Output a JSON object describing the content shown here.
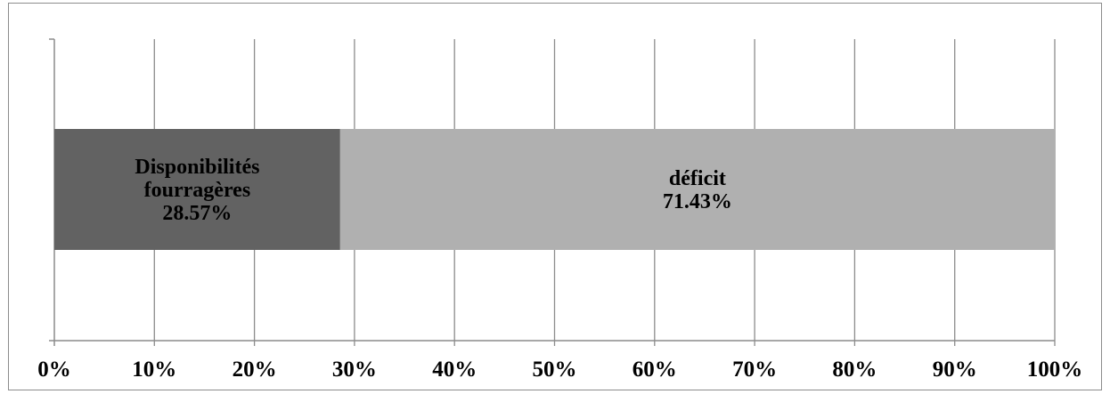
{
  "chart_data": {
    "type": "bar",
    "orientation": "horizontal",
    "stacked": true,
    "normalized": true,
    "categories": [
      ""
    ],
    "series": [
      {
        "name": "Disponibilités fourragères",
        "values": [
          28.57
        ],
        "value_label": "28.57%",
        "label_lines": [
          "Disponibilités",
          "fourragères",
          "28.57%"
        ],
        "color": "#626262"
      },
      {
        "name": "déficit",
        "values": [
          71.43
        ],
        "value_label": "71.43%",
        "label_lines": [
          "déficit",
          "71.43%"
        ],
        "color": "#b0b0b0"
      }
    ],
    "xticks": [
      "0%",
      "10%",
      "20%",
      "30%",
      "40%",
      "50%",
      "60%",
      "70%",
      "80%",
      "90%",
      "100%"
    ],
    "xlim": [
      0,
      100
    ],
    "grid": true,
    "legend": "none",
    "title": "",
    "xlabel": "",
    "ylabel": ""
  }
}
